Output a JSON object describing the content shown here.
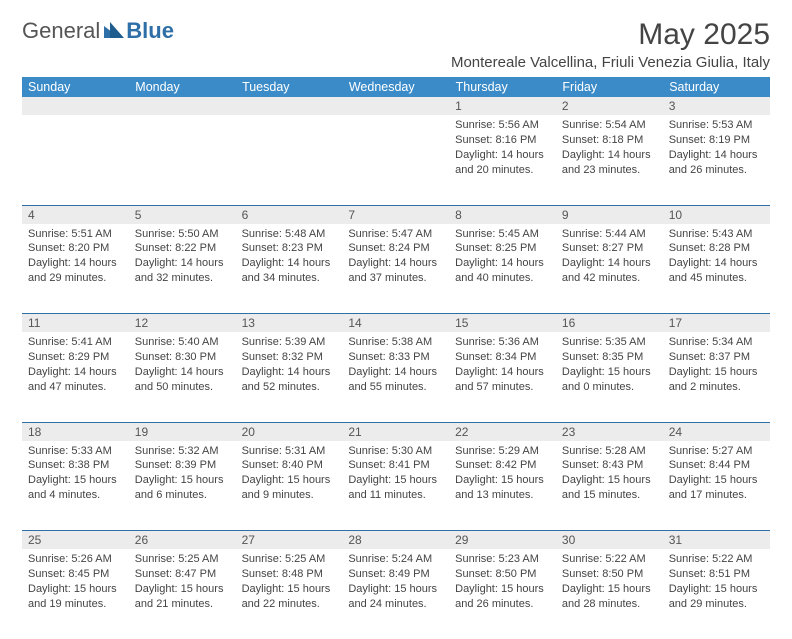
{
  "logo": {
    "text_general": "General",
    "text_blue": "Blue"
  },
  "title": "May 2025",
  "location": "Montereale Valcellina, Friuli Venezia Giulia, Italy",
  "colors": {
    "header_bg": "#3b8bc9",
    "header_text": "#ffffff",
    "daynum_bg": "#ececec",
    "rule": "#2f6fa7",
    "body_text": "#444444",
    "logo_blue": "#2f6fa7"
  },
  "fonts": {
    "title_size_pt": 22,
    "location_size_pt": 11,
    "header_size_pt": 9,
    "body_size_pt": 8
  },
  "day_headers": [
    "Sunday",
    "Monday",
    "Tuesday",
    "Wednesday",
    "Thursday",
    "Friday",
    "Saturday"
  ],
  "weeks": [
    [
      null,
      null,
      null,
      null,
      {
        "n": "1",
        "sunrise": "5:56 AM",
        "sunset": "8:16 PM",
        "daylight": "14 hours and 20 minutes."
      },
      {
        "n": "2",
        "sunrise": "5:54 AM",
        "sunset": "8:18 PM",
        "daylight": "14 hours and 23 minutes."
      },
      {
        "n": "3",
        "sunrise": "5:53 AM",
        "sunset": "8:19 PM",
        "daylight": "14 hours and 26 minutes."
      }
    ],
    [
      {
        "n": "4",
        "sunrise": "5:51 AM",
        "sunset": "8:20 PM",
        "daylight": "14 hours and 29 minutes."
      },
      {
        "n": "5",
        "sunrise": "5:50 AM",
        "sunset": "8:22 PM",
        "daylight": "14 hours and 32 minutes."
      },
      {
        "n": "6",
        "sunrise": "5:48 AM",
        "sunset": "8:23 PM",
        "daylight": "14 hours and 34 minutes."
      },
      {
        "n": "7",
        "sunrise": "5:47 AM",
        "sunset": "8:24 PM",
        "daylight": "14 hours and 37 minutes."
      },
      {
        "n": "8",
        "sunrise": "5:45 AM",
        "sunset": "8:25 PM",
        "daylight": "14 hours and 40 minutes."
      },
      {
        "n": "9",
        "sunrise": "5:44 AM",
        "sunset": "8:27 PM",
        "daylight": "14 hours and 42 minutes."
      },
      {
        "n": "10",
        "sunrise": "5:43 AM",
        "sunset": "8:28 PM",
        "daylight": "14 hours and 45 minutes."
      }
    ],
    [
      {
        "n": "11",
        "sunrise": "5:41 AM",
        "sunset": "8:29 PM",
        "daylight": "14 hours and 47 minutes."
      },
      {
        "n": "12",
        "sunrise": "5:40 AM",
        "sunset": "8:30 PM",
        "daylight": "14 hours and 50 minutes."
      },
      {
        "n": "13",
        "sunrise": "5:39 AM",
        "sunset": "8:32 PM",
        "daylight": "14 hours and 52 minutes."
      },
      {
        "n": "14",
        "sunrise": "5:38 AM",
        "sunset": "8:33 PM",
        "daylight": "14 hours and 55 minutes."
      },
      {
        "n": "15",
        "sunrise": "5:36 AM",
        "sunset": "8:34 PM",
        "daylight": "14 hours and 57 minutes."
      },
      {
        "n": "16",
        "sunrise": "5:35 AM",
        "sunset": "8:35 PM",
        "daylight": "15 hours and 0 minutes."
      },
      {
        "n": "17",
        "sunrise": "5:34 AM",
        "sunset": "8:37 PM",
        "daylight": "15 hours and 2 minutes."
      }
    ],
    [
      {
        "n": "18",
        "sunrise": "5:33 AM",
        "sunset": "8:38 PM",
        "daylight": "15 hours and 4 minutes."
      },
      {
        "n": "19",
        "sunrise": "5:32 AM",
        "sunset": "8:39 PM",
        "daylight": "15 hours and 6 minutes."
      },
      {
        "n": "20",
        "sunrise": "5:31 AM",
        "sunset": "8:40 PM",
        "daylight": "15 hours and 9 minutes."
      },
      {
        "n": "21",
        "sunrise": "5:30 AM",
        "sunset": "8:41 PM",
        "daylight": "15 hours and 11 minutes."
      },
      {
        "n": "22",
        "sunrise": "5:29 AM",
        "sunset": "8:42 PM",
        "daylight": "15 hours and 13 minutes."
      },
      {
        "n": "23",
        "sunrise": "5:28 AM",
        "sunset": "8:43 PM",
        "daylight": "15 hours and 15 minutes."
      },
      {
        "n": "24",
        "sunrise": "5:27 AM",
        "sunset": "8:44 PM",
        "daylight": "15 hours and 17 minutes."
      }
    ],
    [
      {
        "n": "25",
        "sunrise": "5:26 AM",
        "sunset": "8:45 PM",
        "daylight": "15 hours and 19 minutes."
      },
      {
        "n": "26",
        "sunrise": "5:25 AM",
        "sunset": "8:47 PM",
        "daylight": "15 hours and 21 minutes."
      },
      {
        "n": "27",
        "sunrise": "5:25 AM",
        "sunset": "8:48 PM",
        "daylight": "15 hours and 22 minutes."
      },
      {
        "n": "28",
        "sunrise": "5:24 AM",
        "sunset": "8:49 PM",
        "daylight": "15 hours and 24 minutes."
      },
      {
        "n": "29",
        "sunrise": "5:23 AM",
        "sunset": "8:50 PM",
        "daylight": "15 hours and 26 minutes."
      },
      {
        "n": "30",
        "sunrise": "5:22 AM",
        "sunset": "8:50 PM",
        "daylight": "15 hours and 28 minutes."
      },
      {
        "n": "31",
        "sunrise": "5:22 AM",
        "sunset": "8:51 PM",
        "daylight": "15 hours and 29 minutes."
      }
    ]
  ],
  "labels": {
    "sunrise": "Sunrise:",
    "sunset": "Sunset:",
    "daylight": "Daylight:"
  }
}
